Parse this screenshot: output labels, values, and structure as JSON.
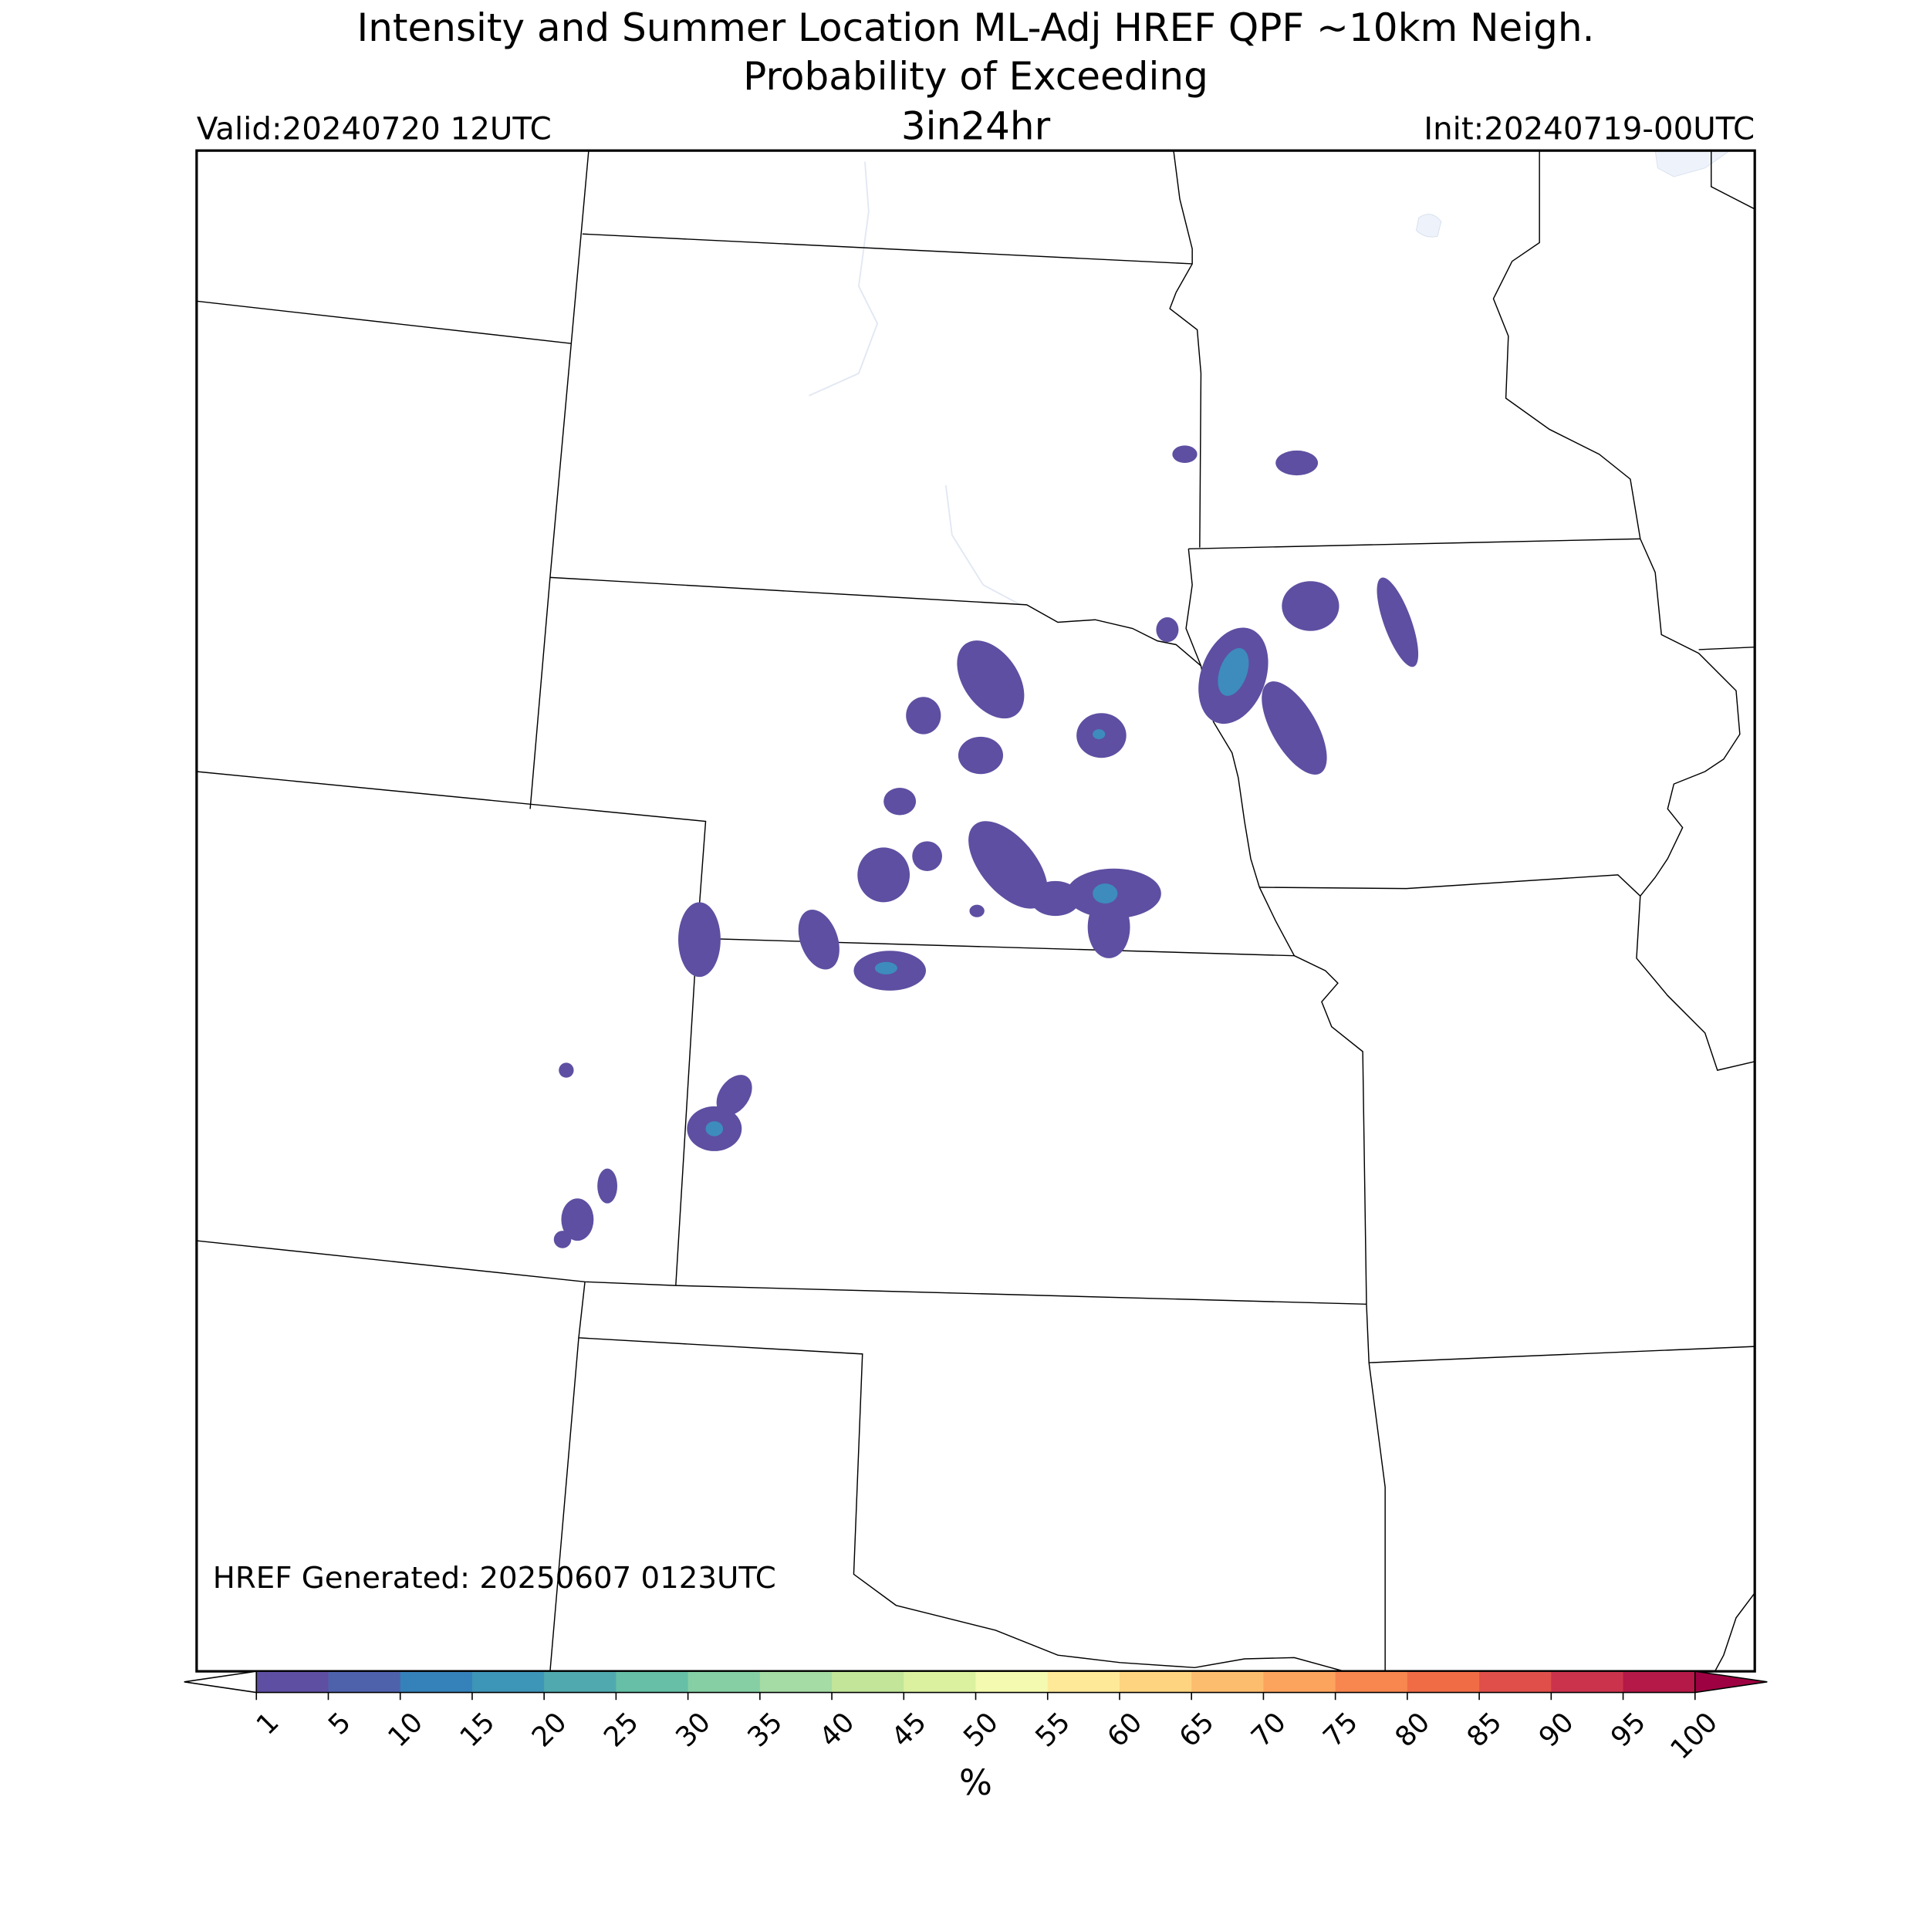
{
  "header": {
    "title_line1": "Intensity and Summer Location ML-Adj HREF QPF ~10km Neigh.",
    "title_line2": "Probability of Exceeding",
    "threshold": "3in24hr",
    "valid": "Valid:20240720 12UTC",
    "init": "Init:20240719-00UTC"
  },
  "footer": {
    "generated": "HREF Generated: 20250607 0123UTC"
  },
  "colorbar": {
    "ticks": [
      1,
      5,
      10,
      15,
      20,
      25,
      30,
      35,
      40,
      45,
      50,
      55,
      60,
      65,
      70,
      75,
      80,
      85,
      90,
      95,
      100
    ],
    "colors": [
      "#5e4fa2",
      "#4e62ac",
      "#3581b9",
      "#3d95b8",
      "#50a9af",
      "#66bfa6",
      "#86cfa5",
      "#a5dba4",
      "#c2e599",
      "#dbf1a0",
      "#f4faaf",
      "#fee999",
      "#fed481",
      "#fdbd6f",
      "#fca45e",
      "#f8864f",
      "#f06c45",
      "#e04f4a",
      "#cb334d",
      "#b41947"
    ],
    "under_color": "#ffffff",
    "over_color": "#9e0142",
    "label": "%"
  }
}
